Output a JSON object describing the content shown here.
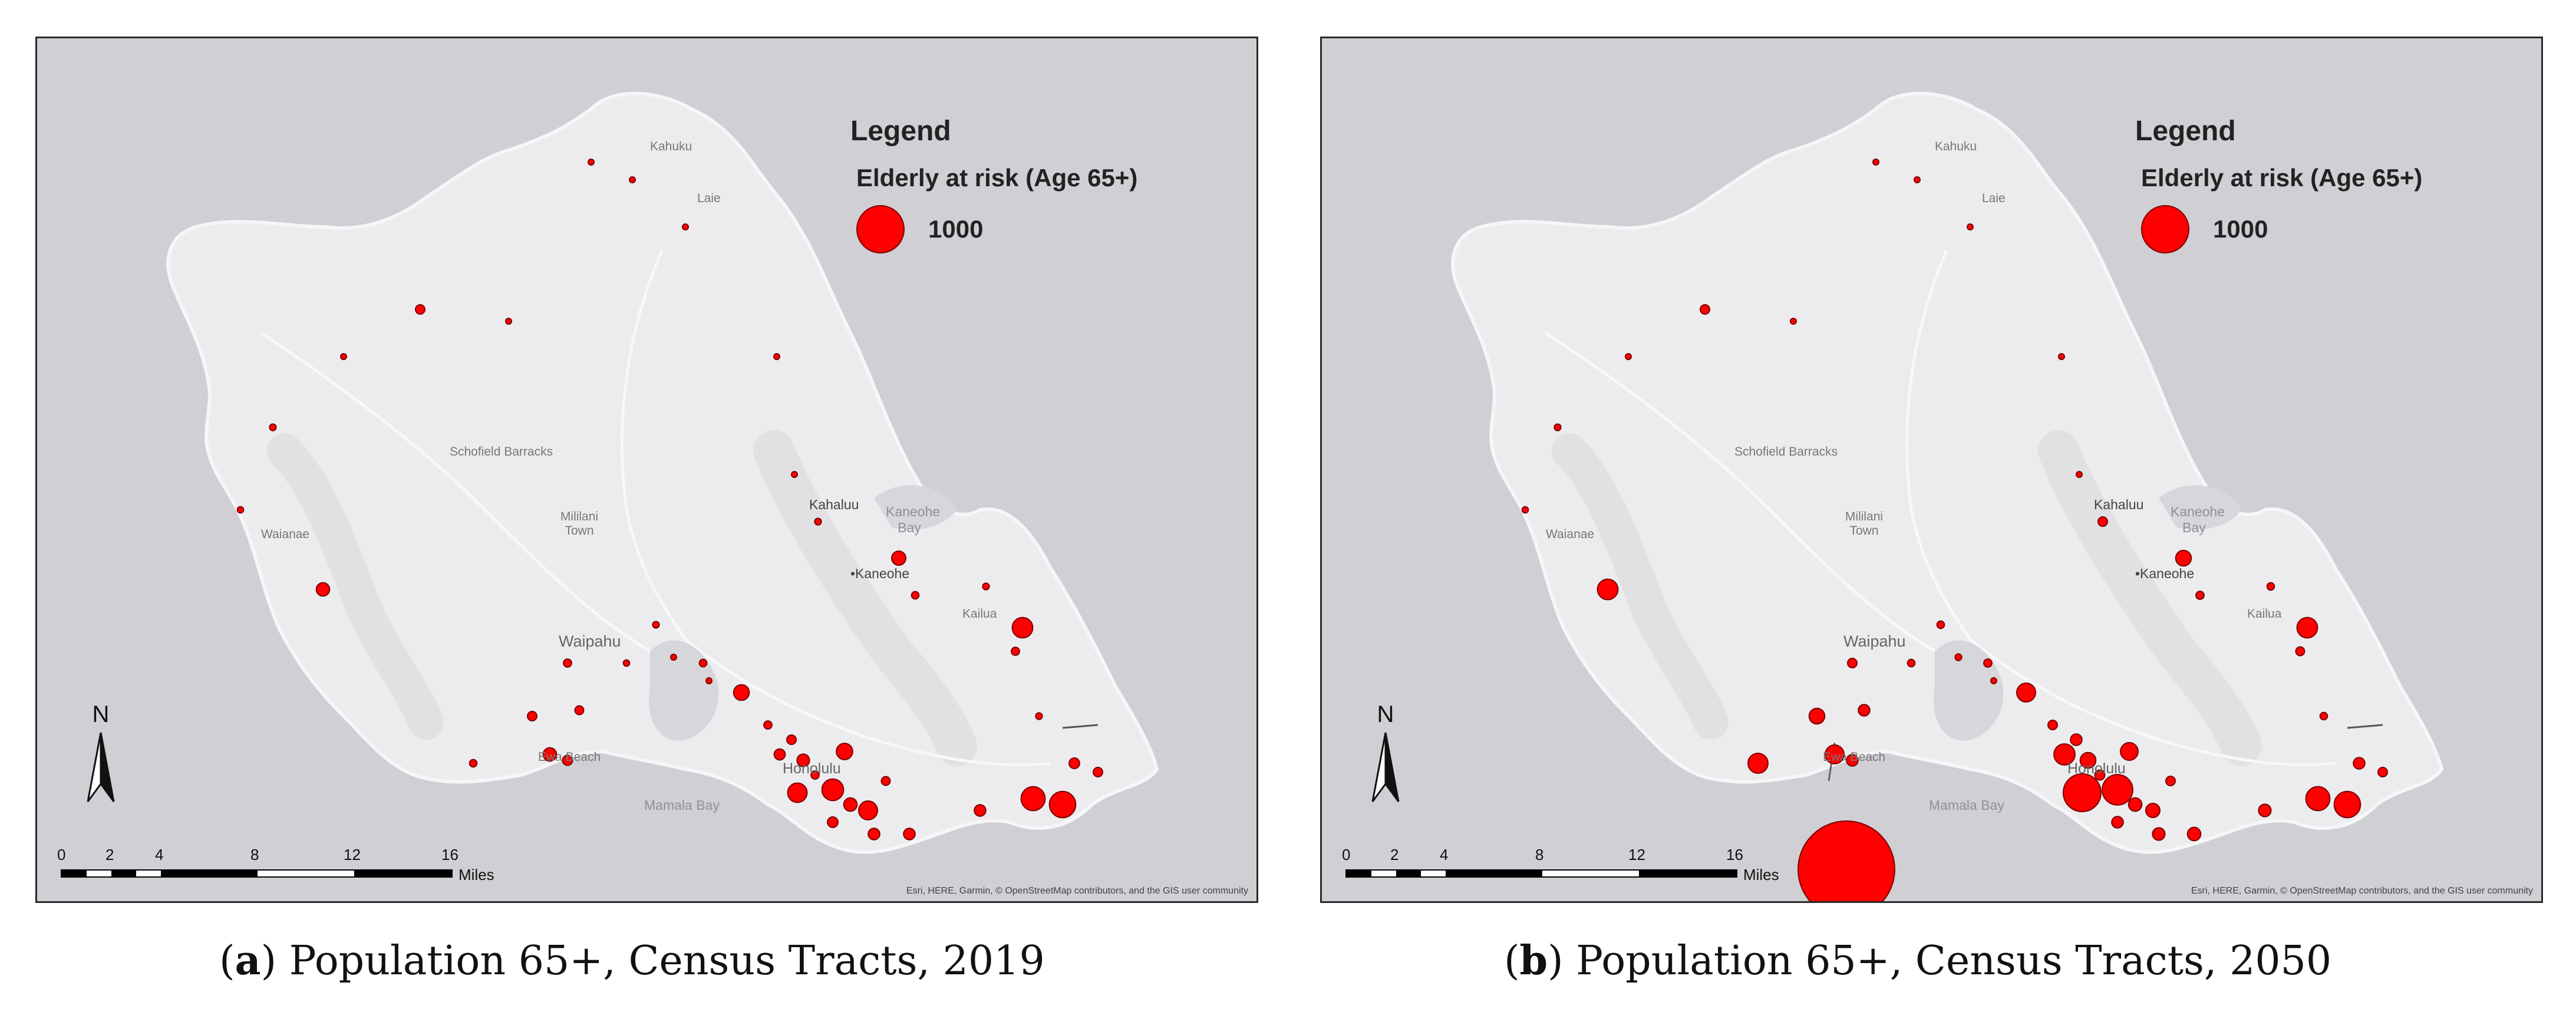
{
  "legend": {
    "title": "Legend",
    "subtitle": "Elderly at risk (Age 65+)",
    "value": "1000"
  },
  "places": {
    "kahuku": "Kahuku",
    "laie": "Laie",
    "schofield": "Schofield Barracks",
    "mililani": "Mililani Town",
    "waianae": "Waianae",
    "kahaluu": "Kahaluu",
    "kaneohe_bay": "Kaneohe Bay",
    "kaneohe": "•Kaneohe",
    "kailua": "Kailua",
    "waipahu": "Waipahu",
    "ewa_beach": "Ewa Beach",
    "honolulu": "Honolulu",
    "mamala_bay": "Mamala Bay"
  },
  "scale": {
    "ticks": [
      "0",
      "2",
      "4",
      "8",
      "12",
      "16"
    ],
    "unit": "Miles"
  },
  "north": "N",
  "attribution": "Esri, HERE, Garmin, © OpenStreetMap contributors, and the GIS user community",
  "colors": {
    "water": "#cfcfd4",
    "land": "#ececee",
    "symbol": "#ff0000",
    "symbol_stroke": "#7a0000"
  },
  "panels": [
    {
      "letter": "a",
      "caption_text": ") Population 65+, Census Tracts, 2019",
      "symbols": [
        {
          "site": "north-shore",
          "value": 15
        },
        {
          "site": "kahuku",
          "value": 8
        },
        {
          "site": "laie",
          "value": 8
        },
        {
          "site": "waialua",
          "value": 40
        },
        {
          "site": "haleiwa",
          "value": 15
        },
        {
          "site": "mokuleia",
          "value": 10
        },
        {
          "site": "wahiawa-n",
          "value": 6
        },
        {
          "site": "makaha",
          "value": 20
        },
        {
          "site": "waianae",
          "value": 18
        },
        {
          "site": "nanakuli",
          "value": 80
        },
        {
          "site": "kaaawa",
          "value": 10
        },
        {
          "site": "kahaluu",
          "value": 20
        },
        {
          "site": "kaneohe",
          "value": 90
        },
        {
          "site": "kaneohe-s",
          "value": 25
        },
        {
          "site": "kailua-n",
          "value": 20
        },
        {
          "site": "kailua",
          "value": 190
        },
        {
          "site": "kailua-s",
          "value": 30
        },
        {
          "site": "pearl-city",
          "value": 20
        },
        {
          "site": "aiea",
          "value": 15
        },
        {
          "site": "waipahu",
          "value": 25
        },
        {
          "site": "waipahu-s",
          "value": 18
        },
        {
          "site": "waipio",
          "value": 12
        },
        {
          "site": "halawa",
          "value": 110
        },
        {
          "site": "kapolei",
          "value": 30
        },
        {
          "site": "makakilo",
          "value": 35
        },
        {
          "site": "ewa",
          "value": 40
        },
        {
          "site": "ewa-beach",
          "value": 80
        },
        {
          "site": "ewa-beach-e",
          "value": 45
        },
        {
          "site": "nanakuli-s",
          "value": 25
        },
        {
          "site": "moanalua",
          "value": 30
        },
        {
          "site": "kalihi",
          "value": 40
        },
        {
          "site": "kalihi-s",
          "value": 55
        },
        {
          "site": "liliha",
          "value": 70
        },
        {
          "site": "makiki",
          "value": 120
        },
        {
          "site": "waikiki-w",
          "value": 170
        },
        {
          "site": "waikiki",
          "value": 210
        },
        {
          "site": "kaimuki",
          "value": 80
        },
        {
          "site": "kapahulu",
          "value": 160
        },
        {
          "site": "diamond-head",
          "value": 50
        },
        {
          "site": "kahala",
          "value": 60
        },
        {
          "site": "aina-haina",
          "value": 60
        },
        {
          "site": "hawaii-kai",
          "value": 260
        },
        {
          "site": "hawaii-kai-e",
          "value": 310
        },
        {
          "site": "portlock",
          "value": 60
        },
        {
          "site": "kuliouou",
          "value": 50
        },
        {
          "site": "waimanalo",
          "value": 20
        },
        {
          "site": "manoa",
          "value": 30
        },
        {
          "site": "palolo",
          "value": 35
        },
        {
          "site": "kalama",
          "value": 40
        }
      ]
    },
    {
      "letter": "b",
      "caption_text": ") Population 65+, Census Tracts, 2050",
      "symbols": [
        {
          "site": "north-shore",
          "value": 15
        },
        {
          "site": "kahuku",
          "value": 8
        },
        {
          "site": "laie",
          "value": 8
        },
        {
          "site": "waialua",
          "value": 40
        },
        {
          "site": "haleiwa",
          "value": 15
        },
        {
          "site": "mokuleia",
          "value": 10
        },
        {
          "site": "wahiawa-n",
          "value": 6
        },
        {
          "site": "makaha",
          "value": 20
        },
        {
          "site": "waianae",
          "value": 18
        },
        {
          "site": "nanakuli",
          "value": 190
        },
        {
          "site": "kaaawa",
          "value": 10
        },
        {
          "site": "kahaluu",
          "value": 40
        },
        {
          "site": "kaneohe",
          "value": 110
        },
        {
          "site": "kaneohe-s",
          "value": 30
        },
        {
          "site": "kailua-n",
          "value": 25
        },
        {
          "site": "kailua",
          "value": 190
        },
        {
          "site": "kailua-s",
          "value": 35
        },
        {
          "site": "pearl-city",
          "value": 25
        },
        {
          "site": "aiea",
          "value": 20
        },
        {
          "site": "waipahu",
          "value": 30
        },
        {
          "site": "waipahu-s",
          "value": 25
        },
        {
          "site": "waipio",
          "value": 15
        },
        {
          "site": "halawa",
          "value": 160
        },
        {
          "site": "kapolei",
          "value": 40
        },
        {
          "site": "makakilo",
          "value": 60
        },
        {
          "site": "ewa",
          "value": 110
        },
        {
          "site": "ewa-beach",
          "value": 160
        },
        {
          "site": "ewa-beach-e",
          "value": 60
        },
        {
          "site": "nanakuli-s",
          "value": 180
        },
        {
          "site": "moanalua",
          "value": 40
        },
        {
          "site": "kalihi",
          "value": 60
        },
        {
          "site": "kalihi-s",
          "value": 200
        },
        {
          "site": "liliha",
          "value": 110
        },
        {
          "site": "makiki",
          "value": 140
        },
        {
          "site": "waikiki-w",
          "value": 640
        },
        {
          "site": "waikiki",
          "value": 420
        },
        {
          "site": "kaimuki",
          "value": 80
        },
        {
          "site": "kapahulu",
          "value": 90
        },
        {
          "site": "diamond-head",
          "value": 60
        },
        {
          "site": "kahala",
          "value": 70
        },
        {
          "site": "aina-haina",
          "value": 80
        },
        {
          "site": "hawaii-kai",
          "value": 260
        },
        {
          "site": "hawaii-kai-e",
          "value": 310
        },
        {
          "site": "portlock",
          "value": 70
        },
        {
          "site": "kuliouou",
          "value": 60
        },
        {
          "site": "waimanalo",
          "value": 25
        },
        {
          "site": "manoa",
          "value": 45
        },
        {
          "site": "palolo",
          "value": 40
        },
        {
          "site": "kalama",
          "value": 40
        },
        {
          "site": "offshore-honolulu",
          "value": 4200
        }
      ]
    }
  ]
}
